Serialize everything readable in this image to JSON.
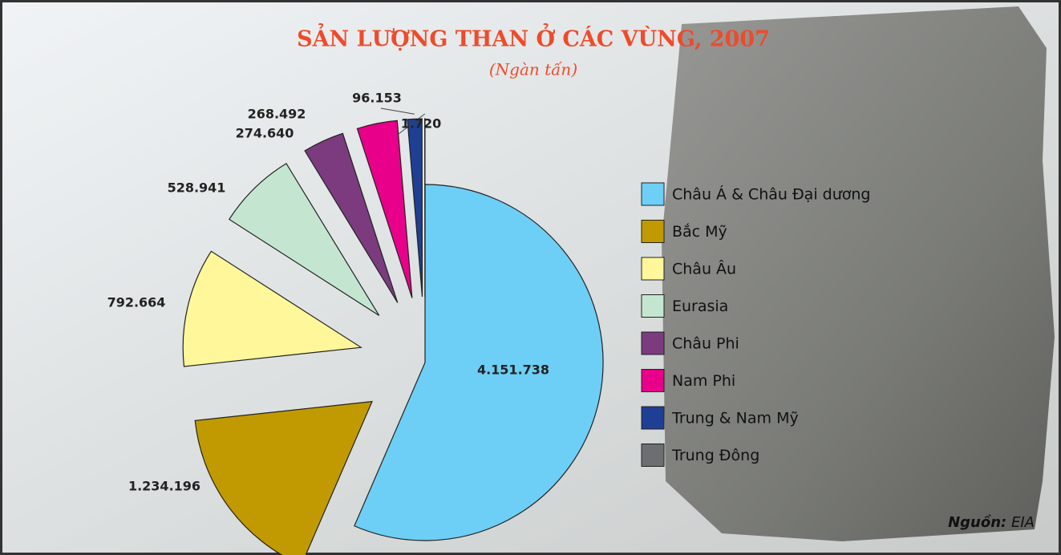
{
  "chart_data": {
    "type": "pie",
    "title": "SẢN LƯỢNG THAN Ở CÁC VÙNG, 2007",
    "subtitle": "(Ngàn tấn)",
    "categories": [
      "Châu Á & Châu Đại dương",
      "Bắc Mỹ",
      "Châu Âu",
      "Eurasia",
      "Châu Phi",
      "Nam Phi",
      "Trung & Nam Mỹ",
      "Trung Đông"
    ],
    "values": [
      4151738,
      1234196,
      792664,
      528941,
      274640,
      268492,
      96153,
      1720
    ],
    "value_labels": [
      "4.151.738",
      "1.234.196",
      "792.664",
      "528.941",
      "274.640",
      "268.492",
      "96.153",
      "1.720"
    ],
    "colors": [
      "#6dcff6",
      "#c09a00",
      "#fff799",
      "#c4e6d0",
      "#7b3b7e",
      "#e8008a",
      "#1e3f94",
      "#6d6e71"
    ],
    "source_label": "Nguồn:",
    "source": "EIA"
  }
}
